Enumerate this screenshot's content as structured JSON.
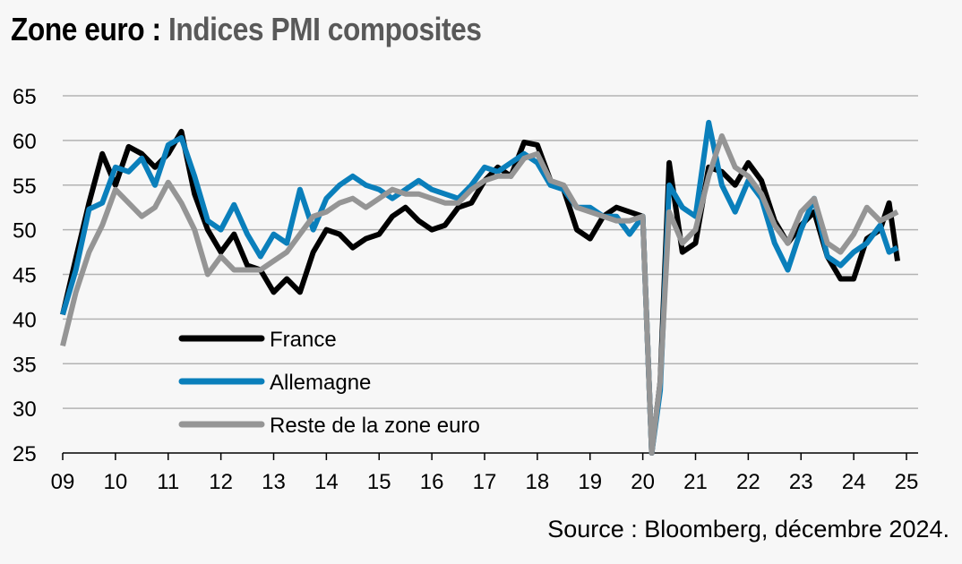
{
  "title": {
    "part1": "Zone euro : ",
    "part2": "Indices PMI composites"
  },
  "source": "Source : Bloomberg, décembre 2024.",
  "colors": {
    "france": "#000000",
    "allemagne": "#0a7fbb",
    "reste": "#959595",
    "grid": "#b3b3b3",
    "axis": "#000000"
  },
  "chart_data": {
    "type": "line",
    "title": "Zone euro : Indices PMI composites",
    "xlabel": "",
    "ylabel": "",
    "ylim": [
      25,
      65
    ],
    "yticks": [
      25,
      30,
      35,
      40,
      45,
      50,
      55,
      60,
      65
    ],
    "xlim": [
      2009,
      2025
    ],
    "xticks": [
      2009,
      2010,
      2011,
      2012,
      2013,
      2014,
      2015,
      2016,
      2017,
      2018,
      2019,
      2020,
      2021,
      2022,
      2023,
      2024,
      2025
    ],
    "xtick_labels": [
      "09",
      "10",
      "11",
      "12",
      "13",
      "14",
      "15",
      "16",
      "17",
      "18",
      "19",
      "20",
      "21",
      "22",
      "23",
      "24",
      "25"
    ],
    "grid": "horizontal",
    "legend_position": "lower-left",
    "x": [
      2009.0,
      2009.25,
      2009.5,
      2009.75,
      2010.0,
      2010.25,
      2010.5,
      2010.75,
      2011.0,
      2011.25,
      2011.5,
      2011.75,
      2012.0,
      2012.25,
      2012.5,
      2012.75,
      2013.0,
      2013.25,
      2013.5,
      2013.75,
      2014.0,
      2014.25,
      2014.5,
      2014.75,
      2015.0,
      2015.25,
      2015.5,
      2015.75,
      2016.0,
      2016.25,
      2016.5,
      2016.75,
      2017.0,
      2017.25,
      2017.5,
      2017.75,
      2018.0,
      2018.25,
      2018.5,
      2018.75,
      2019.0,
      2019.25,
      2019.5,
      2019.75,
      2020.0,
      2020.17,
      2020.33,
      2020.5,
      2020.75,
      2021.0,
      2021.25,
      2021.5,
      2021.75,
      2022.0,
      2022.25,
      2022.5,
      2022.75,
      2023.0,
      2023.25,
      2023.5,
      2023.75,
      2024.0,
      2024.25,
      2024.5,
      2024.67,
      2024.83
    ],
    "series": [
      {
        "name": "France",
        "values": [
          40.5,
          46.8,
          53.0,
          58.5,
          55.0,
          59.3,
          58.5,
          57.0,
          58.5,
          61.0,
          54.0,
          50.0,
          47.5,
          49.5,
          46.0,
          45.5,
          43.0,
          44.5,
          43.0,
          47.5,
          50.0,
          49.5,
          48.0,
          49.0,
          49.5,
          51.5,
          52.5,
          51.0,
          50.0,
          50.5,
          52.5,
          53.0,
          55.5,
          57.0,
          56.0,
          59.8,
          59.5,
          55.5,
          54.5,
          50.0,
          49.0,
          51.5,
          52.5,
          52.0,
          51.5,
          25.0,
          33.0,
          57.5,
          47.5,
          48.5,
          57.0,
          56.5,
          55.0,
          57.5,
          55.5,
          51.0,
          48.5,
          50.5,
          52.0,
          47.0,
          44.5,
          44.5,
          49.0,
          50.0,
          53.0,
          46.5
        ]
      },
      {
        "name": "Allemagne",
        "values": [
          40.5,
          45.5,
          52.3,
          53.0,
          57.0,
          56.5,
          58.0,
          55.0,
          59.5,
          60.3,
          56.0,
          51.0,
          50.0,
          52.8,
          49.5,
          47.0,
          49.5,
          48.5,
          54.5,
          50.0,
          53.5,
          55.0,
          56.0,
          55.0,
          54.5,
          53.5,
          54.5,
          55.5,
          54.5,
          54.0,
          53.5,
          55.0,
          57.0,
          56.5,
          57.5,
          58.5,
          57.5,
          55.0,
          54.5,
          52.5,
          52.5,
          51.5,
          51.5,
          49.5,
          51.5,
          25.0,
          32.0,
          55.0,
          52.5,
          51.5,
          62.0,
          55.0,
          52.0,
          55.5,
          53.5,
          48.5,
          45.5,
          50.0,
          53.5,
          47.0,
          46.0,
          47.5,
          48.5,
          50.5,
          47.5,
          48.0
        ]
      },
      {
        "name": "Reste de la zone euro",
        "values": [
          37.0,
          43.0,
          47.5,
          50.5,
          54.5,
          53.0,
          51.5,
          52.5,
          55.3,
          53.0,
          50.0,
          45.0,
          47.0,
          45.5,
          45.5,
          45.5,
          46.5,
          47.5,
          49.5,
          51.5,
          52.0,
          53.0,
          53.5,
          52.5,
          53.5,
          54.5,
          54.0,
          54.0,
          53.5,
          53.0,
          53.0,
          54.5,
          55.5,
          56.0,
          56.0,
          58.0,
          58.5,
          55.5,
          55.0,
          52.5,
          52.0,
          51.5,
          51.0,
          51.0,
          51.5,
          25.0,
          33.0,
          52.0,
          48.5,
          50.0,
          56.0,
          60.5,
          57.0,
          56.0,
          54.0,
          50.5,
          48.5,
          52.0,
          53.5,
          48.5,
          47.5,
          49.5,
          52.5,
          51.0,
          51.5,
          52.0
        ]
      }
    ]
  },
  "legend": [
    {
      "label": "France",
      "series": "france"
    },
    {
      "label": "Allemagne",
      "series": "allemagne"
    },
    {
      "label": "Reste de la zone euro",
      "series": "reste"
    }
  ]
}
